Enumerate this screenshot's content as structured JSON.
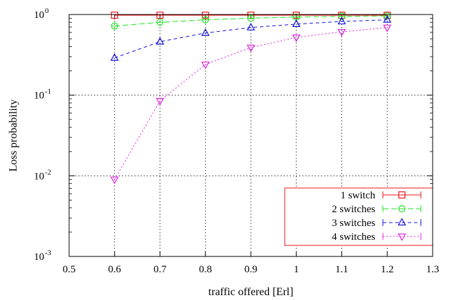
{
  "chart_data": {
    "type": "line",
    "xlabel": "traffic offered [Erl]",
    "ylabel": "Loss probability",
    "xlim": [
      0.5,
      1.3
    ],
    "ylim": [
      0.001,
      1
    ],
    "yscale": "log",
    "grid": true,
    "legend_position": "bottom-right",
    "x_ticks": [
      0.5,
      0.6,
      0.7,
      0.8,
      0.9,
      1.0,
      1.1,
      1.2,
      1.3
    ],
    "x_tick_labels": [
      "0.5",
      "0.6",
      "0.7",
      "0.8",
      "0.9",
      "1",
      "1.1",
      "1.2",
      "1.3"
    ],
    "y_ticks": [
      {
        "value": 1,
        "base": "10",
        "exp": "0"
      },
      {
        "value": 0.1,
        "base": "10",
        "exp": "-1"
      },
      {
        "value": 0.01,
        "base": "10",
        "exp": "-2"
      },
      {
        "value": 0.001,
        "base": "10",
        "exp": "-3"
      }
    ],
    "series": [
      {
        "name": "1 switch",
        "color": "#e8141a",
        "marker": "square",
        "dash": "solid",
        "x": [
          0.6,
          0.7,
          0.8,
          0.9,
          1.0,
          1.1,
          1.2
        ],
        "y": [
          0.98,
          0.98,
          0.98,
          0.98,
          0.98,
          0.98,
          0.98
        ]
      },
      {
        "name": "2 switches",
        "color": "#1ee61e",
        "marker": "circle",
        "dash": "long",
        "x": [
          0.6,
          0.7,
          0.8,
          0.9,
          1.0,
          1.1,
          1.2
        ],
        "y": [
          0.72,
          0.8,
          0.86,
          0.9,
          0.93,
          0.95,
          0.96
        ]
      },
      {
        "name": "3 switches",
        "color": "#1010d8",
        "marker": "triangle-up",
        "dash": "short",
        "x": [
          0.6,
          0.7,
          0.8,
          0.9,
          1.0,
          1.1,
          1.2
        ],
        "y": [
          0.29,
          0.46,
          0.59,
          0.69,
          0.76,
          0.82,
          0.86
        ]
      },
      {
        "name": "4 switches",
        "color": "#e020e0",
        "marker": "triangle-down",
        "dash": "dot",
        "x": [
          0.6,
          0.7,
          0.8,
          0.9,
          1.0,
          1.1,
          1.2
        ],
        "y": [
          0.009,
          0.085,
          0.24,
          0.39,
          0.52,
          0.61,
          0.69
        ]
      }
    ]
  }
}
